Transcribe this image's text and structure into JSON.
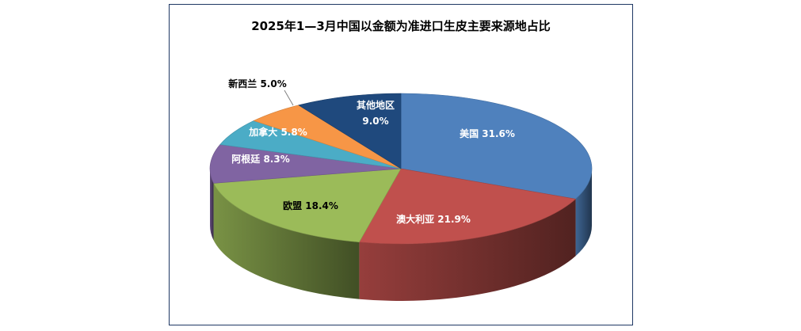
{
  "chart_data": {
    "type": "pie",
    "title": "2025年1—3月中国以金额为准进口生皮主要来源地占比",
    "slices": [
      {
        "label": "美国",
        "value": 31.6,
        "display": "31.6%",
        "color": "#4f81bd"
      },
      {
        "label": "澳大利亚",
        "value": 21.9,
        "display": "21.9%",
        "color": "#c0504d"
      },
      {
        "label": "欧盟",
        "value": 18.4,
        "display": "18.4%",
        "color": "#9bbb59"
      },
      {
        "label": "阿根廷",
        "value": 8.3,
        "display": "8.3%",
        "color": "#8064a2"
      },
      {
        "label": "加拿大",
        "value": 5.8,
        "display": "5.8%",
        "color": "#4bacc6"
      },
      {
        "label": "新西兰",
        "value": 5.0,
        "display": "5.0%",
        "color": "#f79646"
      },
      {
        "label": "其他地区",
        "value": 9.0,
        "display": "9.0%",
        "color": "#1f497d"
      }
    ],
    "legend": "none",
    "style": "3d-pie"
  }
}
